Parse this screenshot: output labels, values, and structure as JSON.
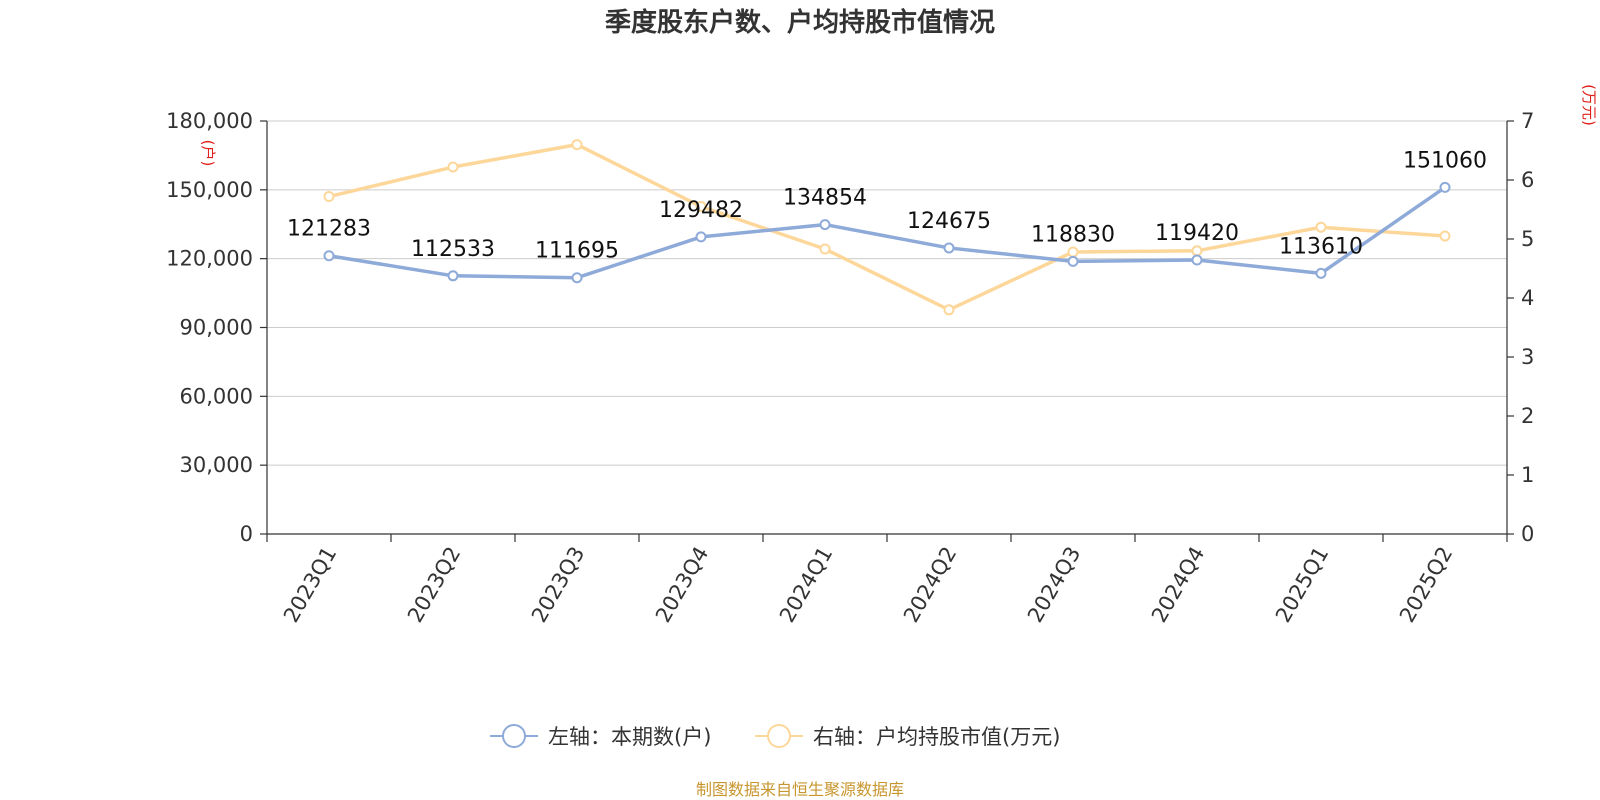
{
  "chart_data": {
    "type": "line",
    "title": "季度股东户数、户均持股市值情况",
    "categories": [
      "2023Q1",
      "2023Q2",
      "2023Q3",
      "2023Q4",
      "2024Q1",
      "2024Q2",
      "2024Q3",
      "2024Q4",
      "2025Q1",
      "2025Q2"
    ],
    "series": [
      {
        "name": "左轴：本期数(户)",
        "axis": "left",
        "color": "#8eaad8",
        "values": [
          121283,
          112533,
          111695,
          129482,
          134854,
          124675,
          118830,
          119420,
          113610,
          151060
        ],
        "data_labels": [
          "121283",
          "112533",
          "111695",
          "129482",
          "134854",
          "124675",
          "118830",
          "119420",
          "113610",
          "151060"
        ]
      },
      {
        "name": "右轴：户均持股市值(万元)",
        "axis": "right",
        "color": "#fdd79a",
        "values": [
          5.72,
          6.22,
          6.6,
          5.55,
          4.83,
          3.8,
          4.78,
          4.8,
          5.2,
          5.05
        ]
      }
    ],
    "y_left": {
      "unit": "(户)",
      "ylim": [
        0,
        180000
      ],
      "ticks": [
        "0",
        "30,000",
        "60,000",
        "90,000",
        "120,000",
        "150,000",
        "180,000"
      ]
    },
    "y_right": {
      "unit": "(万元)",
      "ylim": [
        0,
        7
      ],
      "ticks": [
        "0",
        "1",
        "2",
        "3",
        "4",
        "5",
        "6",
        "7"
      ]
    },
    "grid": true,
    "legend_position": "bottom",
    "source": "制图数据来自恒生聚源数据库"
  },
  "colors": {
    "axis_unit": "#e0201b",
    "source": "#c8962e",
    "grid": "#cccccc",
    "axis": "#333333"
  }
}
